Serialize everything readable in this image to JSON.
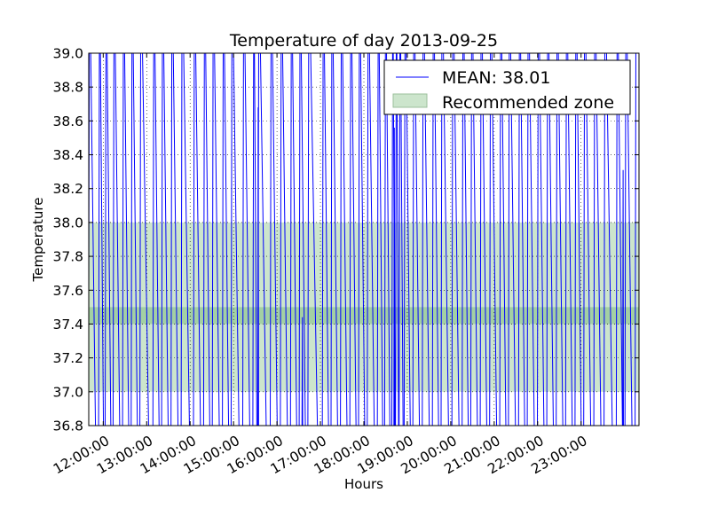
{
  "chart_data": {
    "type": "line",
    "title": "Temperature of day 2013-09-25",
    "xlabel": "Hours",
    "ylabel": "Temperature",
    "ylim": [
      36.8,
      39.0
    ],
    "xlim": [
      "11:40:00",
      "24:20:00"
    ],
    "y_ticks": [
      "36.8",
      "37.0",
      "37.2",
      "37.4",
      "37.6",
      "37.8",
      "38.0",
      "38.2",
      "38.4",
      "38.6",
      "38.8",
      "39.0"
    ],
    "x_ticks": [
      "12:00:00",
      "13:00:00",
      "14:00:00",
      "15:00:00",
      "16:00:00",
      "17:00:00",
      "18:00:00",
      "19:00:00",
      "20:00:00",
      "21:00:00",
      "22:00:00",
      "23:00:00"
    ],
    "grid": true,
    "legend_position": "top-right",
    "series": [
      {
        "name": "MEAN: 38.01",
        "color": "#0000ff",
        "style": "sawtooth oscillation spanning beyond the full axis range",
        "cycle_peak_times": [
          "11:41",
          "11:55",
          "12:04",
          "12:15",
          "12:28",
          "12:40",
          "12:52",
          "13:10",
          "13:22",
          "13:35",
          "13:49",
          "14:06",
          "14:20",
          "14:32",
          "14:46",
          "14:58",
          "15:14",
          "15:28",
          "15:35",
          "15:52",
          "16:06",
          "16:20",
          "16:32",
          "16:44",
          "17:04",
          "17:16",
          "17:29",
          "17:42",
          "17:54",
          "18:06",
          "18:20",
          "18:30",
          "18:40",
          "18:45",
          "18:50",
          "18:57",
          "19:09",
          "19:22",
          "19:36",
          "19:48",
          "20:03",
          "20:17",
          "20:29",
          "20:42",
          "20:55",
          "21:09",
          "21:21",
          "21:35",
          "21:47",
          "22:01",
          "22:14",
          "22:27",
          "22:40",
          "22:53",
          "23:05",
          "23:19",
          "23:33",
          "23:50",
          "24:02",
          "24:16"
        ],
        "partial_peaks": [
          {
            "time": "15:34",
            "value": 38.68
          },
          {
            "time": "16:35",
            "value": 37.44
          },
          {
            "time": "18:42",
            "value": 38.56
          },
          {
            "time": "23:58",
            "value": 38.31
          }
        ]
      }
    ],
    "bands": [
      {
        "name": "Recommended zone",
        "from": 37.0,
        "to": 38.0,
        "color": "#cce5cc"
      },
      {
        "from": 37.4,
        "to": 37.5,
        "color": "#a3d0a3"
      }
    ]
  }
}
